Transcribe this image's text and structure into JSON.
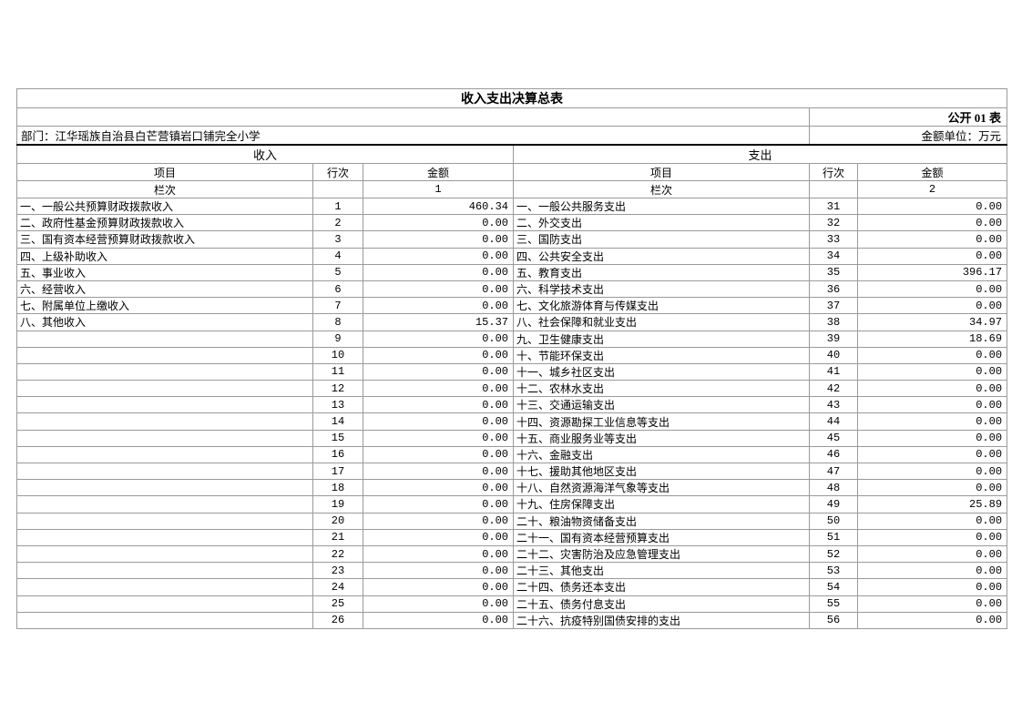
{
  "title": "收入支出决算总表",
  "meta": {
    "table_code": "公开 01 表",
    "department": "部门：江华瑶族自治县白芒营镇岩口铺完全小学",
    "unit": "金额单位：万元"
  },
  "sections": {
    "income_label": "收入",
    "expense_label": "支出"
  },
  "columns": {
    "item": "项目",
    "row_no": "行次",
    "amount": "金额"
  },
  "lanci": {
    "label": "栏次",
    "income_col": "1",
    "expense_col": "2"
  },
  "income_rows": [
    {
      "item": "一、一般公共预算财政拨款收入",
      "no": "1",
      "amt": "460.34"
    },
    {
      "item": "二、政府性基金预算财政拨款收入",
      "no": "2",
      "amt": "0.00"
    },
    {
      "item": "三、国有资本经营预算财政拨款收入",
      "no": "3",
      "amt": "0.00"
    },
    {
      "item": "四、上级补助收入",
      "no": "4",
      "amt": "0.00"
    },
    {
      "item": "五、事业收入",
      "no": "5",
      "amt": "0.00"
    },
    {
      "item": "六、经营收入",
      "no": "6",
      "amt": "0.00"
    },
    {
      "item": "七、附属单位上缴收入",
      "no": "7",
      "amt": "0.00"
    },
    {
      "item": "八、其他收入",
      "no": "8",
      "amt": "15.37"
    },
    {
      "item": "",
      "no": "9",
      "amt": "0.00"
    },
    {
      "item": "",
      "no": "10",
      "amt": "0.00"
    },
    {
      "item": "",
      "no": "11",
      "amt": "0.00"
    },
    {
      "item": "",
      "no": "12",
      "amt": "0.00"
    },
    {
      "item": "",
      "no": "13",
      "amt": "0.00"
    },
    {
      "item": "",
      "no": "14",
      "amt": "0.00"
    },
    {
      "item": "",
      "no": "15",
      "amt": "0.00"
    },
    {
      "item": "",
      "no": "16",
      "amt": "0.00"
    },
    {
      "item": "",
      "no": "17",
      "amt": "0.00"
    },
    {
      "item": "",
      "no": "18",
      "amt": "0.00"
    },
    {
      "item": "",
      "no": "19",
      "amt": "0.00"
    },
    {
      "item": "",
      "no": "20",
      "amt": "0.00"
    },
    {
      "item": "",
      "no": "21",
      "amt": "0.00"
    },
    {
      "item": "",
      "no": "22",
      "amt": "0.00"
    },
    {
      "item": "",
      "no": "23",
      "amt": "0.00"
    },
    {
      "item": "",
      "no": "24",
      "amt": "0.00"
    },
    {
      "item": "",
      "no": "25",
      "amt": "0.00"
    },
    {
      "item": "",
      "no": "26",
      "amt": "0.00"
    }
  ],
  "expense_rows": [
    {
      "item": "一、一般公共服务支出",
      "no": "31",
      "amt": "0.00"
    },
    {
      "item": "二、外交支出",
      "no": "32",
      "amt": "0.00"
    },
    {
      "item": "三、国防支出",
      "no": "33",
      "amt": "0.00"
    },
    {
      "item": "四、公共安全支出",
      "no": "34",
      "amt": "0.00"
    },
    {
      "item": "五、教育支出",
      "no": "35",
      "amt": "396.17"
    },
    {
      "item": "六、科学技术支出",
      "no": "36",
      "amt": "0.00"
    },
    {
      "item": "七、文化旅游体育与传媒支出",
      "no": "37",
      "amt": "0.00"
    },
    {
      "item": "八、社会保障和就业支出",
      "no": "38",
      "amt": "34.97"
    },
    {
      "item": "九、卫生健康支出",
      "no": "39",
      "amt": "18.69"
    },
    {
      "item": "十、节能环保支出",
      "no": "40",
      "amt": "0.00"
    },
    {
      "item": "十一、城乡社区支出",
      "no": "41",
      "amt": "0.00"
    },
    {
      "item": "十二、农林水支出",
      "no": "42",
      "amt": "0.00"
    },
    {
      "item": "十三、交通运输支出",
      "no": "43",
      "amt": "0.00"
    },
    {
      "item": "十四、资源勘探工业信息等支出",
      "no": "44",
      "amt": "0.00"
    },
    {
      "item": "十五、商业服务业等支出",
      "no": "45",
      "amt": "0.00"
    },
    {
      "item": "十六、金融支出",
      "no": "46",
      "amt": "0.00"
    },
    {
      "item": "十七、援助其他地区支出",
      "no": "47",
      "amt": "0.00"
    },
    {
      "item": "十八、自然资源海洋气象等支出",
      "no": "48",
      "amt": "0.00"
    },
    {
      "item": "十九、住房保障支出",
      "no": "49",
      "amt": "25.89"
    },
    {
      "item": "二十、粮油物资储备支出",
      "no": "50",
      "amt": "0.00"
    },
    {
      "item": "二十一、国有资本经营预算支出",
      "no": "51",
      "amt": "0.00"
    },
    {
      "item": "二十二、灾害防治及应急管理支出",
      "no": "52",
      "amt": "0.00"
    },
    {
      "item": "二十三、其他支出",
      "no": "53",
      "amt": "0.00"
    },
    {
      "item": "二十四、债务还本支出",
      "no": "54",
      "amt": "0.00"
    },
    {
      "item": "二十五、债务付息支出",
      "no": "55",
      "amt": "0.00"
    },
    {
      "item": "二十六、抗疫特别国债安排的支出",
      "no": "56",
      "amt": "0.00"
    }
  ],
  "colors": {
    "grid_line": "#9a9a9a",
    "heavy_rule": "#000000",
    "text": "#000000",
    "background": "#ffffff"
  }
}
